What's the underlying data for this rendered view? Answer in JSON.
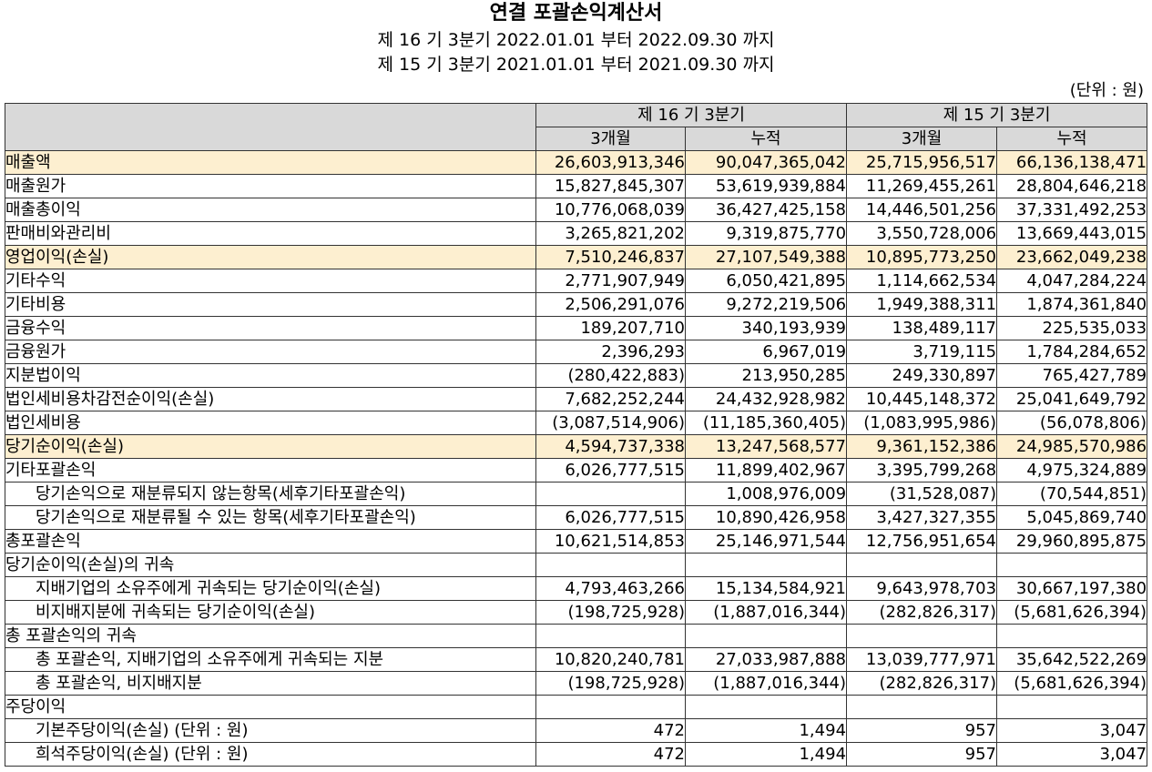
{
  "document": {
    "title": "연결 포괄손익계산서",
    "periods": [
      "제 16 기 3분기 2022.01.01 부터 2022.09.30 까지",
      "제 15 기 3분기 2021.01.01 부터 2021.09.30 까지"
    ],
    "unit": "(단위 : 원)"
  },
  "colors": {
    "header_bg": "#d9d9d9",
    "highlight_bg": "#fdefd0",
    "border": "#333333"
  },
  "table": {
    "period_headers": [
      "제 16 기 3분기",
      "제 15 기 3분기"
    ],
    "column_headers": [
      "3개월",
      "누적",
      "3개월",
      "누적"
    ],
    "rows": [
      {
        "label": "매출액",
        "level": 0,
        "highlighted": true,
        "values": [
          "26,603,913,346",
          "90,047,365,042",
          "25,715,956,517",
          "66,136,138,471"
        ]
      },
      {
        "label": "매출원가",
        "level": 0,
        "highlighted": false,
        "values": [
          "15,827,845,307",
          "53,619,939,884",
          "11,269,455,261",
          "28,804,646,218"
        ]
      },
      {
        "label": "매출총이익",
        "level": 0,
        "highlighted": false,
        "values": [
          "10,776,068,039",
          "36,427,425,158",
          "14,446,501,256",
          "37,331,492,253"
        ]
      },
      {
        "label": "판매비와관리비",
        "level": 0,
        "highlighted": false,
        "values": [
          "3,265,821,202",
          "9,319,875,770",
          "3,550,728,006",
          "13,669,443,015"
        ]
      },
      {
        "label": "영업이익(손실)",
        "level": 0,
        "highlighted": true,
        "values": [
          "7,510,246,837",
          "27,107,549,388",
          "10,895,773,250",
          "23,662,049,238"
        ]
      },
      {
        "label": "기타수익",
        "level": 0,
        "highlighted": false,
        "values": [
          "2,771,907,949",
          "6,050,421,895",
          "1,114,662,534",
          "4,047,284,224"
        ]
      },
      {
        "label": "기타비용",
        "level": 0,
        "highlighted": false,
        "values": [
          "2,506,291,076",
          "9,272,219,506",
          "1,949,388,311",
          "1,874,361,840"
        ]
      },
      {
        "label": "금융수익",
        "level": 0,
        "highlighted": false,
        "values": [
          "189,207,710",
          "340,193,939",
          "138,489,117",
          "225,535,033"
        ]
      },
      {
        "label": "금융원가",
        "level": 0,
        "highlighted": false,
        "values": [
          "2,396,293",
          "6,967,019",
          "3,719,115",
          "1,784,284,652"
        ]
      },
      {
        "label": "지분법이익",
        "level": 0,
        "highlighted": false,
        "values": [
          "(280,422,883)",
          "213,950,285",
          "249,330,897",
          "765,427,789"
        ]
      },
      {
        "label": "법인세비용차감전순이익(손실)",
        "level": 0,
        "highlighted": false,
        "values": [
          "7,682,252,244",
          "24,432,928,982",
          "10,445,148,372",
          "25,041,649,792"
        ]
      },
      {
        "label": "법인세비용",
        "level": 0,
        "highlighted": false,
        "values": [
          "(3,087,514,906)",
          "(11,185,360,405)",
          "(1,083,995,986)",
          "(56,078,806)"
        ]
      },
      {
        "label": "당기순이익(손실)",
        "level": 0,
        "highlighted": true,
        "values": [
          "4,594,737,338",
          "13,247,568,577",
          "9,361,152,386",
          "24,985,570,986"
        ]
      },
      {
        "label": "기타포괄손익",
        "level": 0,
        "highlighted": false,
        "values": [
          "6,026,777,515",
          "11,899,402,967",
          "3,395,799,268",
          "4,975,324,889"
        ]
      },
      {
        "label": "당기손익으로 재분류되지 않는항목(세후기타포괄손익)",
        "level": 1,
        "highlighted": false,
        "values": [
          "",
          "1,008,976,009",
          "(31,528,087)",
          "(70,544,851)"
        ]
      },
      {
        "label": "당기손익으로 재분류될 수 있는 항목(세후기타포괄손익)",
        "level": 1,
        "highlighted": false,
        "values": [
          "6,026,777,515",
          "10,890,426,958",
          "3,427,327,355",
          "5,045,869,740"
        ]
      },
      {
        "label": "총포괄손익",
        "level": 0,
        "highlighted": false,
        "values": [
          "10,621,514,853",
          "25,146,971,544",
          "12,756,951,654",
          "29,960,895,875"
        ]
      },
      {
        "label": "당기순이익(손실)의 귀속",
        "level": 0,
        "highlighted": false,
        "values": [
          "",
          "",
          "",
          ""
        ]
      },
      {
        "label": "지배기업의 소유주에게 귀속되는 당기순이익(손실)",
        "level": 1,
        "highlighted": false,
        "values": [
          "4,793,463,266",
          "15,134,584,921",
          "9,643,978,703",
          "30,667,197,380"
        ]
      },
      {
        "label": "비지배지분에 귀속되는 당기순이익(손실)",
        "level": 1,
        "highlighted": false,
        "values": [
          "(198,725,928)",
          "(1,887,016,344)",
          "(282,826,317)",
          "(5,681,626,394)"
        ]
      },
      {
        "label": "총 포괄손익의 귀속",
        "level": 0,
        "highlighted": false,
        "values": [
          "",
          "",
          "",
          ""
        ]
      },
      {
        "label": "총 포괄손익, 지배기업의 소유주에게 귀속되는 지분",
        "level": 1,
        "highlighted": false,
        "values": [
          "10,820,240,781",
          "27,033,987,888",
          "13,039,777,971",
          "35,642,522,269"
        ]
      },
      {
        "label": "총 포괄손익, 비지배지분",
        "level": 1,
        "highlighted": false,
        "values": [
          "(198,725,928)",
          "(1,887,016,344)",
          "(282,826,317)",
          "(5,681,626,394)"
        ]
      },
      {
        "label": "주당이익",
        "level": 0,
        "highlighted": false,
        "values": [
          "",
          "",
          "",
          ""
        ]
      },
      {
        "label": "기본주당이익(손실) (단위 : 원)",
        "level": 1,
        "highlighted": false,
        "values": [
          "472",
          "1,494",
          "957",
          "3,047"
        ]
      },
      {
        "label": "희석주당이익(손실) (단위 : 원)",
        "level": 1,
        "highlighted": false,
        "values": [
          "472",
          "1,494",
          "957",
          "3,047"
        ]
      }
    ]
  }
}
